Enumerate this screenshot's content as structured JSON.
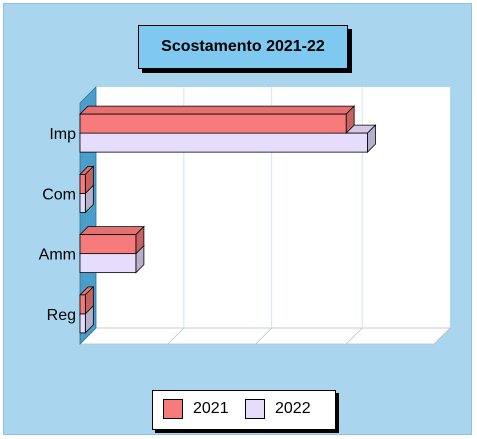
{
  "chart_data": {
    "type": "bar",
    "orientation": "horizontal",
    "title": "Scostamento 2021-22",
    "categories": [
      "Imp",
      "Com",
      "Amm",
      "Reg"
    ],
    "series": [
      {
        "name": "2021",
        "values": [
          1.0,
          0.02,
          0.21,
          0.02
        ],
        "color": "#f77b7b"
      },
      {
        "name": "2022",
        "values": [
          1.08,
          0.02,
          0.21,
          0.02
        ],
        "color": "#e6dcfc"
      }
    ],
    "xlim": [
      0,
      1.33
    ],
    "xlabel": "",
    "ylabel": "",
    "grid": "vertical",
    "legend_position": "bottom-center"
  },
  "colors": {
    "background": "#a9d6ee",
    "title_box": "#7fc8ef",
    "plot_wall": "#ffffff",
    "left_wall": "#4a9ec9",
    "grid": "#cde6ee"
  }
}
